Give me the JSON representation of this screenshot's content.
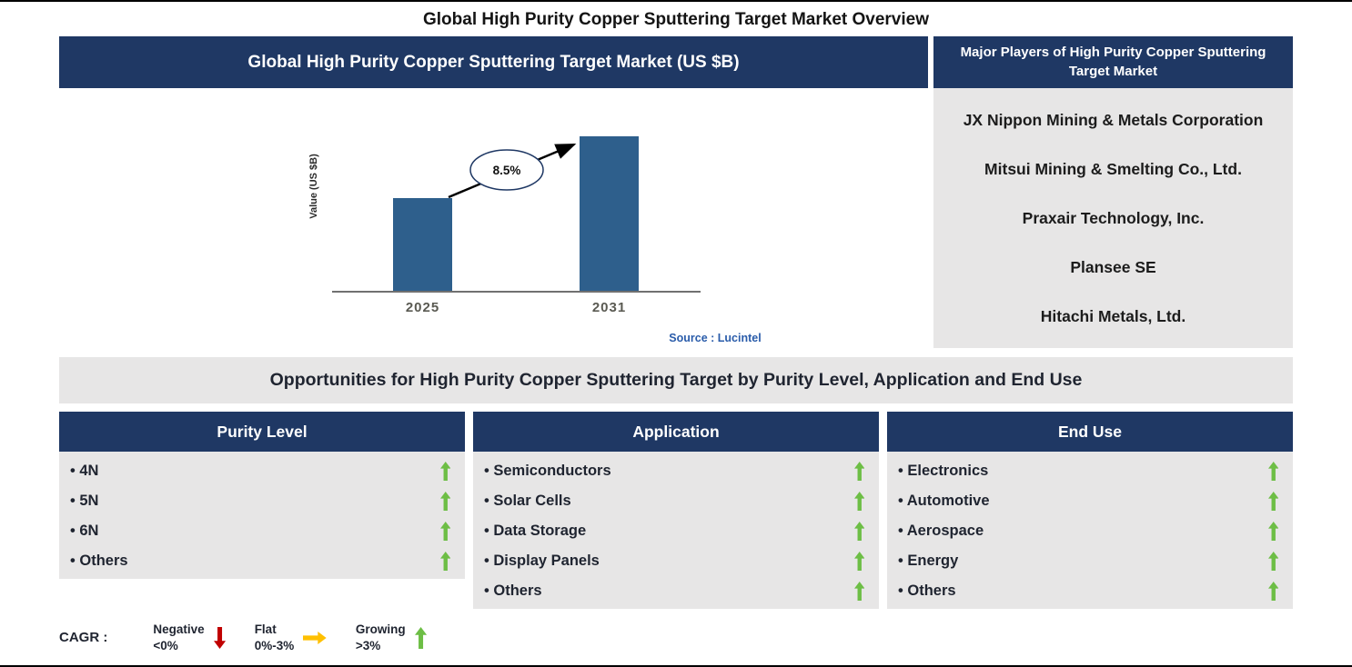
{
  "page": {
    "title": "Global High Purity Copper Sputtering Target Market Overview"
  },
  "chart_panel": {
    "header": "Global High Purity Copper Sputtering Target Market (US $B)",
    "source": "Source : Lucintel"
  },
  "chart_data": {
    "type": "bar",
    "title": "Global High Purity Copper Sputtering Target Market (US $B)",
    "ylabel": "Value (US $B)",
    "categories": [
      "2025",
      "2031"
    ],
    "values": [
      0.6,
      1.0
    ],
    "growth_label": "8.5%",
    "grid": false,
    "legend_position": "none"
  },
  "players_panel": {
    "header": "Major Players of High Purity Copper Sputtering Target Market",
    "companies": [
      "JX Nippon Mining & Metals Corporation",
      "Mitsui Mining & Smelting Co., Ltd.",
      "Praxair Technology, Inc.",
      "Plansee SE",
      "Hitachi Metals, Ltd."
    ]
  },
  "opportunities": {
    "title": "Opportunities for High Purity Copper Sputtering Target by Purity Level, Application and End Use",
    "columns": [
      {
        "header": "Purity Level",
        "items": [
          "4N",
          "5N",
          "6N",
          "Others"
        ]
      },
      {
        "header": "Application",
        "items": [
          "Semiconductors",
          "Solar Cells",
          "Data Storage",
          "Display Panels",
          "Others"
        ]
      },
      {
        "header": "End Use",
        "items": [
          "Electronics",
          "Automotive",
          "Aerospace",
          "Energy",
          "Others"
        ]
      }
    ],
    "items_trend": "growing"
  },
  "legend": {
    "label": "CAGR :",
    "items": [
      {
        "name": "Negative",
        "range": "<0%",
        "direction": "down"
      },
      {
        "name": "Flat",
        "range": "0%-3%",
        "direction": "right"
      },
      {
        "name": "Growing",
        "range": ">3%",
        "direction": "up"
      }
    ]
  },
  "colors": {
    "navy": "#1F3864",
    "panel_gray": "#E7E6E6",
    "bar_blue": "#2E5F8C",
    "growing_green": "#6DBE45",
    "negative_red": "#C00000",
    "flat_yellow": "#FFC000",
    "source_blue": "#2A5CAA",
    "text_dark": "#1F2430"
  }
}
